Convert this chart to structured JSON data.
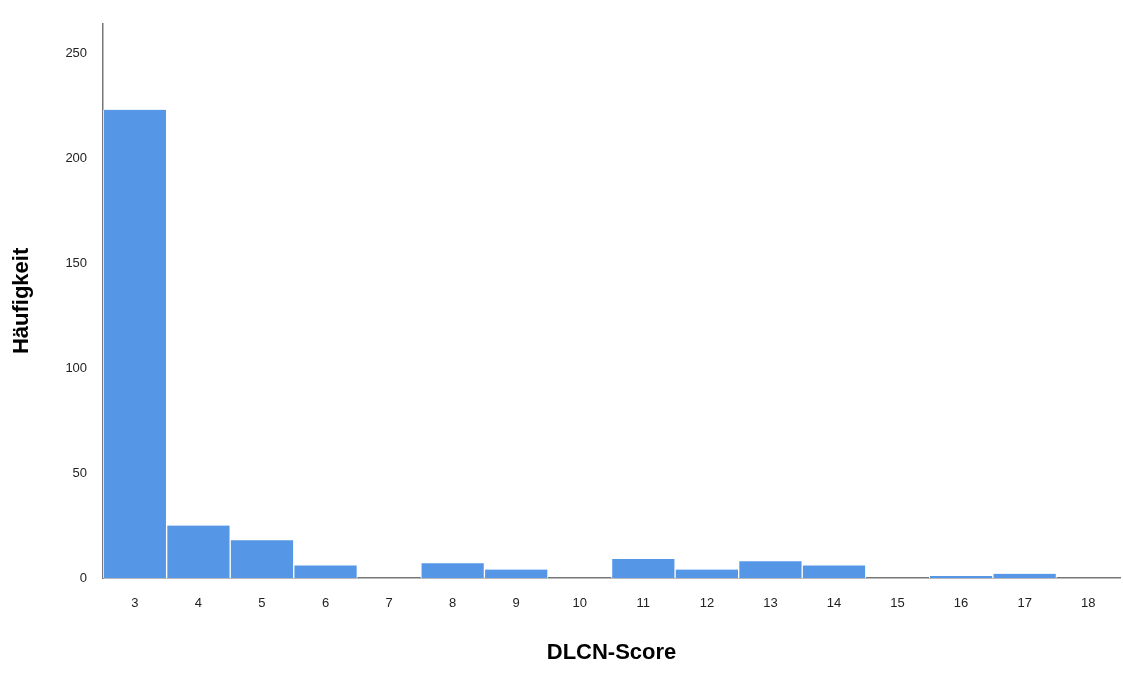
{
  "chart_data": {
    "type": "bar",
    "xlabel": "DLCN-Score",
    "ylabel": "Häufigkeit",
    "categories": [
      "3",
      "4",
      "5",
      "6",
      "7",
      "8",
      "9",
      "10",
      "11",
      "12",
      "13",
      "14",
      "15",
      "16",
      "17",
      "18"
    ],
    "values": [
      223,
      25,
      18,
      6,
      0,
      7,
      4,
      0,
      9,
      4,
      8,
      6,
      0,
      1,
      2,
      0
    ],
    "color": "#5596e6",
    "ylim": [
      0,
      264
    ],
    "yticks": [
      0,
      50,
      100,
      150,
      200,
      250
    ],
    "grid": false,
    "legend": false
  }
}
